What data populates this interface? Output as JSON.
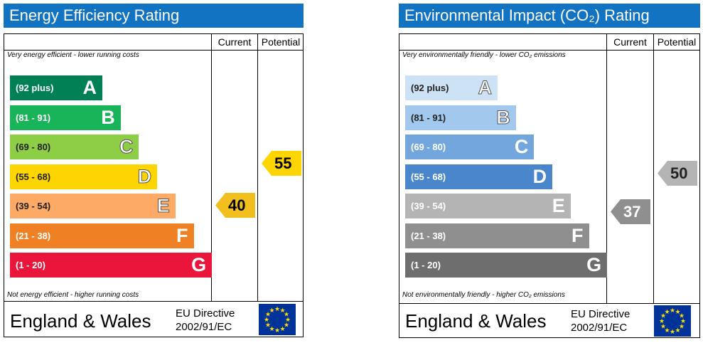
{
  "chart_data": [
    {
      "type": "table",
      "title": "Energy Efficiency Rating",
      "columns": [
        "Current",
        "Potential"
      ],
      "top_note": "Very energy efficient - lower running costs",
      "bottom_note": "Not energy efficient - higher running costs",
      "bands": [
        {
          "range": "(92 plus)",
          "letter": "A",
          "color": "#008054"
        },
        {
          "range": "(81 - 91)",
          "letter": "B",
          "color": "#19b459"
        },
        {
          "range": "(69 - 80)",
          "letter": "C",
          "color": "#8dce46"
        },
        {
          "range": "(55 - 68)",
          "letter": "D",
          "color": "#ffd500"
        },
        {
          "range": "(39 - 54)",
          "letter": "E",
          "color": "#fcaa65"
        },
        {
          "range": "(21 - 38)",
          "letter": "F",
          "color": "#ef8023"
        },
        {
          "range": "(1 - 20)",
          "letter": "G",
          "color": "#e9153b"
        }
      ],
      "current": {
        "value": "40",
        "color": "#f2c01e"
      },
      "potential": {
        "value": "55",
        "color": "#ffd500"
      },
      "region": "England & Wales",
      "directive_line1": "EU Directive",
      "directive_line2": "2002/91/EC"
    },
    {
      "type": "table",
      "title": "Environmental Impact (CO₂) Rating",
      "columns": [
        "Current",
        "Potential"
      ],
      "top_note": "Very environmentally friendly - lower CO₂ emissions",
      "bottom_note": "Not environmentally friendly - higher CO₂ emissions",
      "bands": [
        {
          "range": "(92 plus)",
          "letter": "A",
          "color": "#cde3f5"
        },
        {
          "range": "(81 - 91)",
          "letter": "B",
          "color": "#a2c8ee"
        },
        {
          "range": "(69 - 80)",
          "letter": "C",
          "color": "#73a6dc"
        },
        {
          "range": "(55 - 68)",
          "letter": "D",
          "color": "#4a86cc"
        },
        {
          "range": "(39 - 54)",
          "letter": "E",
          "color": "#b4b4b4"
        },
        {
          "range": "(21 - 38)",
          "letter": "F",
          "color": "#8f8f8f"
        },
        {
          "range": "(1 - 20)",
          "letter": "G",
          "color": "#6e6e6e"
        }
      ],
      "current": {
        "value": "37",
        "color": "#8f8f8f"
      },
      "potential": {
        "value": "50",
        "color": "#b4b4b4"
      },
      "region": "England & Wales",
      "directive_line1": "EU Directive",
      "directive_line2": "2002/91/EC"
    }
  ]
}
